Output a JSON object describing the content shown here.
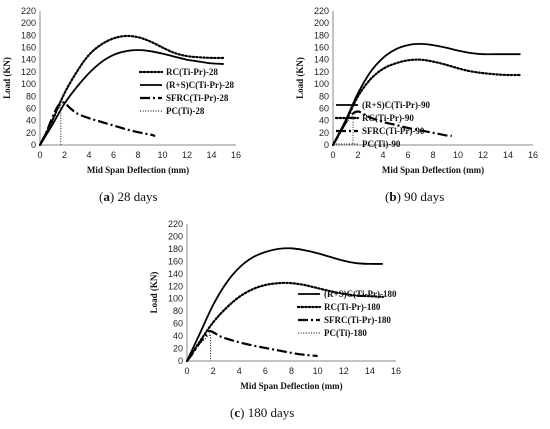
{
  "chart_data": [
    {
      "type": "line",
      "caption_letter": "a",
      "caption_text": "28 days",
      "xlabel": "Mid Span Deflection (mm)",
      "ylabel": "Load (KN)",
      "xlim": [
        0,
        16
      ],
      "ylim": [
        0,
        220
      ],
      "xticks": [
        0,
        2,
        4,
        6,
        8,
        10,
        12,
        14,
        16
      ],
      "yticks": [
        0,
        20,
        40,
        60,
        80,
        100,
        120,
        140,
        160,
        180,
        200,
        220
      ],
      "grid": false,
      "legend_position": "right",
      "series": [
        {
          "name": "RC(Ti-Pr)-28",
          "style": "dotted",
          "points": [
            [
              0,
              0
            ],
            [
              1,
              40
            ],
            [
              2,
              85
            ],
            [
              3,
              120
            ],
            [
              4,
              148
            ],
            [
              5,
              165
            ],
            [
              6,
              175
            ],
            [
              7,
              179
            ],
            [
              8,
              177
            ],
            [
              9,
              170
            ],
            [
              10,
              160
            ],
            [
              11,
              151
            ],
            [
              12,
              146
            ],
            [
              13,
              144
            ],
            [
              14,
              143
            ],
            [
              15,
              143
            ]
          ]
        },
        {
          "name": "(R+S)C(Ti-Pr)-28",
          "style": "solid",
          "points": [
            [
              0,
              0
            ],
            [
              1,
              33
            ],
            [
              2,
              68
            ],
            [
              3,
              95
            ],
            [
              4,
              118
            ],
            [
              5,
              136
            ],
            [
              6,
              148
            ],
            [
              7,
              154
            ],
            [
              8,
              156
            ],
            [
              9,
              154
            ],
            [
              10,
              150
            ],
            [
              11,
              145
            ],
            [
              12,
              140
            ],
            [
              13,
              137
            ],
            [
              14,
              134
            ],
            [
              15,
              133
            ]
          ]
        },
        {
          "name": "SFRC(Ti-Pr)-28",
          "style": "longdash-dot",
          "points": [
            [
              0,
              0
            ],
            [
              0.5,
              20
            ],
            [
              1,
              45
            ],
            [
              1.5,
              65
            ],
            [
              1.9,
              70
            ],
            [
              2.5,
              60
            ],
            [
              3,
              52
            ],
            [
              4,
              44
            ],
            [
              5,
              38
            ],
            [
              6,
              32
            ],
            [
              7,
              26
            ],
            [
              8,
              21
            ],
            [
              9,
              17
            ],
            [
              9.4,
              15
            ]
          ]
        },
        {
          "name": "PC(Ti)-28",
          "style": "thin-dotted",
          "points": [
            [
              0,
              0
            ],
            [
              0.5,
              20
            ],
            [
              1,
              42
            ],
            [
              1.5,
              60
            ],
            [
              1.7,
              65
            ],
            [
              1.7,
              0
            ]
          ]
        }
      ]
    },
    {
      "type": "line",
      "caption_letter": "b",
      "caption_text": "90 days",
      "xlabel": "Mid Span Deflection (mm)",
      "ylabel": "Load (KN)",
      "xlim": [
        0,
        16
      ],
      "ylim": [
        0,
        220
      ],
      "xticks": [
        0,
        2,
        4,
        6,
        8,
        10,
        12,
        14,
        16
      ],
      "yticks": [
        0,
        20,
        40,
        60,
        80,
        100,
        120,
        140,
        160,
        180,
        200,
        220
      ],
      "grid": false,
      "legend_position": "right",
      "series": [
        {
          "name": "(R+S)C(Ti-Pr)-90",
          "style": "solid",
          "points": [
            [
              0,
              0
            ],
            [
              1,
              40
            ],
            [
              2,
              85
            ],
            [
              3,
              120
            ],
            [
              4,
              143
            ],
            [
              5,
              157
            ],
            [
              6,
              164
            ],
            [
              7,
              166
            ],
            [
              8,
              164
            ],
            [
              9,
              160
            ],
            [
              10,
              155
            ],
            [
              11,
              151
            ],
            [
              12,
              149
            ],
            [
              13,
              149
            ],
            [
              14,
              149
            ],
            [
              15,
              149
            ]
          ]
        },
        {
          "name": "RC(Ti-Pr)-90",
          "style": "dotted",
          "points": [
            [
              0,
              0
            ],
            [
              1,
              38
            ],
            [
              2,
              80
            ],
            [
              3,
              108
            ],
            [
              4,
              125
            ],
            [
              5,
              134
            ],
            [
              6,
              139
            ],
            [
              7,
              140
            ],
            [
              8,
              137
            ],
            [
              9,
              132
            ],
            [
              10,
              126
            ],
            [
              11,
              121
            ],
            [
              12,
              118
            ],
            [
              13,
              116
            ],
            [
              14,
              115
            ],
            [
              15,
              115
            ]
          ]
        },
        {
          "name": "SFRC(Ti-Pr)-90",
          "style": "longdash-dot",
          "points": [
            [
              0,
              0
            ],
            [
              0.5,
              18
            ],
            [
              1,
              36
            ],
            [
              1.5,
              50
            ],
            [
              2,
              55
            ],
            [
              2.5,
              50
            ],
            [
              3,
              45
            ],
            [
              4,
              38
            ],
            [
              5,
              33
            ],
            [
              6,
              28
            ],
            [
              7,
              24
            ],
            [
              8,
              20
            ],
            [
              9,
              16
            ],
            [
              9.5,
              15
            ]
          ]
        },
        {
          "name": "PC(Ti)-90",
          "style": "thin-dotted",
          "points": [
            [
              0,
              0
            ],
            [
              0.5,
              18
            ],
            [
              1,
              36
            ],
            [
              1.5,
              46
            ],
            [
              1.6,
              48
            ],
            [
              1.6,
              0
            ]
          ]
        }
      ]
    },
    {
      "type": "line",
      "caption_letter": "c",
      "caption_text": "180 days",
      "xlabel": "Mid Span Deflection (mm)",
      "ylabel": "Load (KN)",
      "xlim": [
        0,
        16
      ],
      "ylim": [
        0,
        220
      ],
      "xticks": [
        0,
        2,
        4,
        6,
        8,
        10,
        12,
        14,
        16
      ],
      "yticks": [
        0,
        20,
        40,
        60,
        80,
        100,
        120,
        140,
        160,
        180,
        200,
        220
      ],
      "grid": false,
      "legend_position": "right",
      "series": [
        {
          "name": "(R+S)C(Ti-Pr)-180",
          "style": "solid",
          "points": [
            [
              0,
              0
            ],
            [
              1,
              45
            ],
            [
              2,
              90
            ],
            [
              3,
              125
            ],
            [
              4,
              150
            ],
            [
              5,
              166
            ],
            [
              6,
              175
            ],
            [
              7,
              180
            ],
            [
              8,
              181
            ],
            [
              9,
              178
            ],
            [
              10,
              173
            ],
            [
              11,
              167
            ],
            [
              12,
              161
            ],
            [
              13,
              157
            ],
            [
              14,
              156
            ],
            [
              15,
              156
            ]
          ]
        },
        {
          "name": "RC(Ti-Pr)-180",
          "style": "dotted",
          "points": [
            [
              0,
              0
            ],
            [
              1,
              32
            ],
            [
              2,
              62
            ],
            [
              3,
              85
            ],
            [
              4,
              103
            ],
            [
              5,
              115
            ],
            [
              6,
              122
            ],
            [
              7,
              125
            ],
            [
              8,
              125
            ],
            [
              9,
              122
            ],
            [
              10,
              117
            ],
            [
              11,
              112
            ],
            [
              12,
              108
            ],
            [
              13,
              105
            ],
            [
              14,
              104
            ],
            [
              15,
              103
            ]
          ]
        },
        {
          "name": "SFRC(Ti-Pr)-180",
          "style": "longdash-dot",
          "points": [
            [
              0,
              0
            ],
            [
              0.5,
              14
            ],
            [
              1,
              30
            ],
            [
              1.5,
              42
            ],
            [
              1.8,
              48
            ],
            [
              2.5,
              40
            ],
            [
              3,
              36
            ],
            [
              4,
              30
            ],
            [
              5,
              25
            ],
            [
              6,
              21
            ],
            [
              7,
              17
            ],
            [
              8,
              13
            ],
            [
              9,
              10
            ],
            [
              10,
              8
            ]
          ]
        },
        {
          "name": "PC(Ti)-180",
          "style": "thin-dotted",
          "points": [
            [
              0,
              0
            ],
            [
              0.5,
              14
            ],
            [
              1,
              28
            ],
            [
              1.5,
              38
            ],
            [
              1.8,
              43
            ],
            [
              1.8,
              0
            ]
          ]
        }
      ]
    }
  ]
}
